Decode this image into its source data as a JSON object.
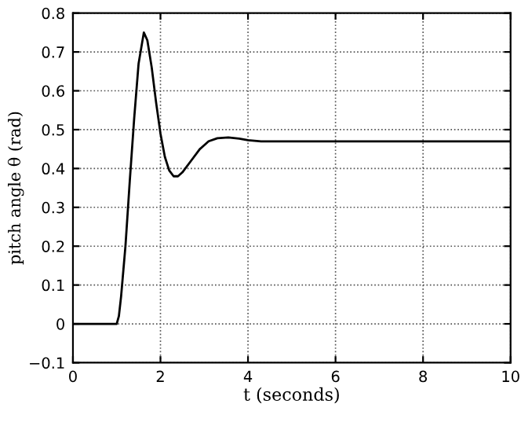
{
  "chart_data": {
    "type": "line",
    "xlabel": "t (seconds)",
    "ylabel": "pitch angle θ (rad)",
    "x": [
      0,
      1.0,
      1.05,
      1.1,
      1.2,
      1.3,
      1.4,
      1.5,
      1.62,
      1.7,
      1.8,
      1.9,
      2.0,
      2.1,
      2.2,
      2.3,
      2.4,
      2.5,
      2.7,
      2.9,
      3.1,
      3.3,
      3.55,
      3.8,
      4.0,
      4.3,
      10
    ],
    "series": [
      {
        "color": "#000000",
        "values": [
          0,
          0,
          0.02,
          0.07,
          0.2,
          0.37,
          0.53,
          0.67,
          0.75,
          0.73,
          0.66,
          0.57,
          0.49,
          0.43,
          0.395,
          0.38,
          0.38,
          0.39,
          0.42,
          0.45,
          0.47,
          0.478,
          0.48,
          0.477,
          0.473,
          0.47,
          0.47
        ]
      }
    ],
    "xlim": [
      0,
      10
    ],
    "xticks": [
      0,
      2,
      4,
      6,
      8,
      10
    ],
    "ylim": [
      -0.1,
      0.8
    ],
    "yticks": [
      -0.1,
      0,
      0.1,
      0.2,
      0.3,
      0.4,
      0.5,
      0.6,
      0.7,
      0.8
    ],
    "grid": true,
    "legend": false,
    "marker": "none",
    "line_style": "solid"
  }
}
